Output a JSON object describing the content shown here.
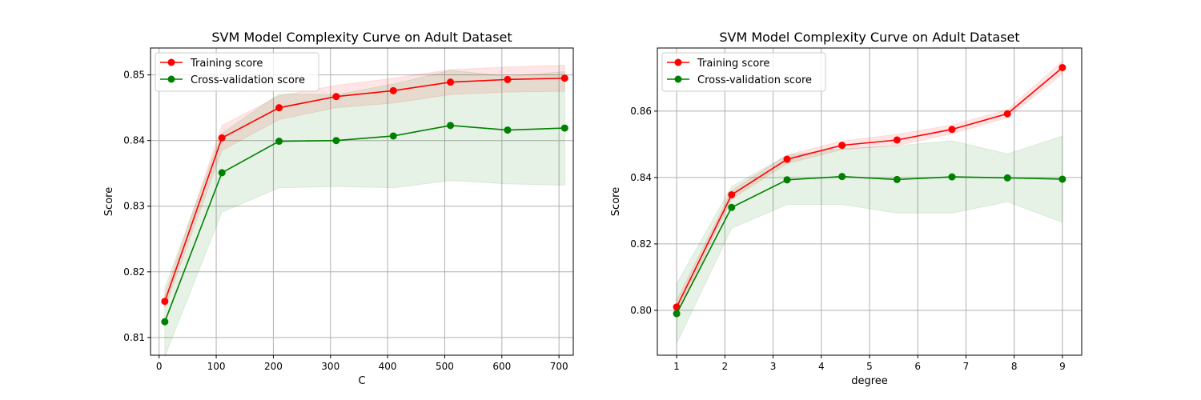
{
  "chart_data": [
    {
      "type": "line",
      "title": "SVM Model Complexity Curve on Adult Dataset",
      "xlabel": "C",
      "ylabel": "Score",
      "xlim": [
        -15,
        725
      ],
      "ylim": [
        0.8073,
        0.8541
      ],
      "xticks": [
        0,
        100,
        200,
        300,
        400,
        500,
        600,
        700
      ],
      "xtick_labels": [
        "0",
        "100",
        "200",
        "300",
        "400",
        "500",
        "600",
        "700"
      ],
      "yticks": [
        0.81,
        0.82,
        0.83,
        0.84,
        0.85
      ],
      "ytick_labels": [
        "0.81",
        "0.82",
        "0.83",
        "0.84",
        "0.85"
      ],
      "grid": true,
      "legend_position": "upper left",
      "x": [
        10,
        110,
        210,
        310,
        410,
        510,
        610,
        710
      ],
      "series": [
        {
          "name": "Training score",
          "color": "#ff0000",
          "values": [
            0.8155,
            0.8404,
            0.845,
            0.8467,
            0.8476,
            0.8489,
            0.8493,
            0.8495
          ],
          "band_low": [
            0.8145,
            0.8385,
            0.8432,
            0.845,
            0.8457,
            0.847,
            0.8474,
            0.8475
          ],
          "band_high": [
            0.8165,
            0.8423,
            0.8468,
            0.8484,
            0.8495,
            0.8508,
            0.8512,
            0.8515
          ]
        },
        {
          "name": "Cross-validation score",
          "color": "#008000",
          "values": [
            0.8124,
            0.8351,
            0.8399,
            0.84,
            0.8407,
            0.8423,
            0.8416,
            0.8419
          ],
          "band_low": [
            0.8071,
            0.8291,
            0.8328,
            0.833,
            0.8328,
            0.8339,
            0.8334,
            0.8332
          ],
          "band_high": [
            0.8176,
            0.8411,
            0.8471,
            0.847,
            0.8486,
            0.8507,
            0.8498,
            0.8505
          ]
        }
      ]
    },
    {
      "type": "line",
      "title": "SVM Model Complexity Curve on Adult Dataset",
      "xlabel": "degree",
      "ylabel": "Score",
      "xlim": [
        0.6,
        9.4
      ],
      "ylim": [
        0.7865,
        0.879
      ],
      "xticks": [
        1,
        2,
        3,
        4,
        5,
        6,
        7,
        8,
        9
      ],
      "xtick_labels": [
        "1",
        "2",
        "3",
        "4",
        "5",
        "6",
        "7",
        "8",
        "9"
      ],
      "yticks": [
        0.8,
        0.82,
        0.84,
        0.86
      ],
      "ytick_labels": [
        "0.80",
        "0.82",
        "0.84",
        "0.86"
      ],
      "grid": true,
      "legend_position": "upper left",
      "x": [
        1,
        2.14,
        3.29,
        4.43,
        5.57,
        6.71,
        7.86,
        9
      ],
      "series": [
        {
          "name": "Training score",
          "color": "#ff0000",
          "values": [
            0.801,
            0.8348,
            0.8455,
            0.8497,
            0.8513,
            0.8545,
            0.8592,
            0.8731
          ],
          "band_low": [
            0.799,
            0.8335,
            0.8442,
            0.8484,
            0.8496,
            0.8532,
            0.858,
            0.8712
          ],
          "band_high": [
            0.803,
            0.8361,
            0.8468,
            0.851,
            0.853,
            0.8558,
            0.8604,
            0.875
          ]
        },
        {
          "name": "Cross-validation score",
          "color": "#008000",
          "values": [
            0.799,
            0.831,
            0.8393,
            0.8403,
            0.8394,
            0.8402,
            0.8399,
            0.8395
          ],
          "band_low": [
            0.79,
            0.8247,
            0.8319,
            0.8319,
            0.8293,
            0.8293,
            0.8327,
            0.8265
          ],
          "band_high": [
            0.808,
            0.8373,
            0.8467,
            0.8487,
            0.8495,
            0.8511,
            0.8471,
            0.8525
          ]
        }
      ]
    }
  ]
}
